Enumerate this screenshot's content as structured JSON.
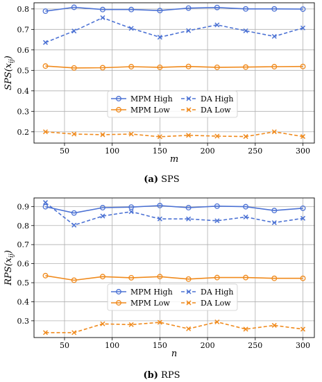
{
  "chart_data": [
    {
      "type": "line",
      "caption_letter": "(a)",
      "caption_text": "SPS",
      "xlabel": "m",
      "ylabel": "SPS(x_ij)",
      "xlim": [
        18,
        312
      ],
      "ylim": [
        0.145,
        0.83
      ],
      "xticks": [
        50,
        100,
        150,
        200,
        250,
        300
      ],
      "yticks": [
        0.2,
        0.3,
        0.4,
        0.5,
        0.6,
        0.7,
        0.8
      ],
      "grid": true,
      "legend_placement": "lower-center",
      "x": [
        30,
        60,
        90,
        120,
        150,
        180,
        210,
        240,
        270,
        300
      ],
      "series": [
        {
          "name": "MPM High",
          "color": "#4c72d4",
          "dash": "solid",
          "marker": "o",
          "values": [
            0.789,
            0.808,
            0.797,
            0.797,
            0.792,
            0.804,
            0.807,
            0.8,
            0.8,
            0.799
          ]
        },
        {
          "name": "DA High",
          "color": "#4c72d4",
          "dash": "dashed",
          "marker": "x",
          "values": [
            0.636,
            0.692,
            0.757,
            0.705,
            0.662,
            0.694,
            0.722,
            0.693,
            0.666,
            0.707
          ]
        },
        {
          "name": "MPM Low",
          "color": "#f08a1c",
          "dash": "solid",
          "marker": "o",
          "values": [
            0.521,
            0.512,
            0.513,
            0.518,
            0.515,
            0.519,
            0.515,
            0.516,
            0.518,
            0.519
          ]
        },
        {
          "name": "DA Low",
          "color": "#f08a1c",
          "dash": "dashed",
          "marker": "x",
          "values": [
            0.2,
            0.189,
            0.186,
            0.189,
            0.176,
            0.183,
            0.179,
            0.177,
            0.2,
            0.177
          ]
        }
      ]
    },
    {
      "type": "line",
      "caption_letter": "(b)",
      "caption_text": "RPS",
      "xlabel": "n",
      "ylabel": "RPS(x_ij)",
      "xlim": [
        18,
        312
      ],
      "ylim": [
        0.212,
        0.945
      ],
      "xticks": [
        50,
        100,
        150,
        200,
        250,
        300
      ],
      "yticks": [
        0.3,
        0.4,
        0.5,
        0.6,
        0.7,
        0.8,
        0.9
      ],
      "grid": true,
      "legend_placement": "lower-center",
      "x": [
        30,
        60,
        90,
        120,
        150,
        180,
        210,
        240,
        270,
        300
      ],
      "series": [
        {
          "name": "MPM High",
          "color": "#4c72d4",
          "dash": "solid",
          "marker": "o",
          "values": [
            0.899,
            0.866,
            0.894,
            0.897,
            0.905,
            0.894,
            0.902,
            0.899,
            0.879,
            0.891
          ]
        },
        {
          "name": "DA High",
          "color": "#4c72d4",
          "dash": "dashed",
          "marker": "x",
          "values": [
            0.921,
            0.802,
            0.85,
            0.873,
            0.835,
            0.835,
            0.825,
            0.845,
            0.815,
            0.838
          ]
        },
        {
          "name": "MPM Low",
          "color": "#f08a1c",
          "dash": "solid",
          "marker": "o",
          "values": [
            0.537,
            0.513,
            0.532,
            0.526,
            0.532,
            0.519,
            0.527,
            0.527,
            0.523,
            0.523
          ]
        },
        {
          "name": "DA Low",
          "color": "#f08a1c",
          "dash": "dashed",
          "marker": "x",
          "values": [
            0.238,
            0.238,
            0.284,
            0.28,
            0.292,
            0.258,
            0.294,
            0.256,
            0.276,
            0.256
          ]
        }
      ]
    }
  ]
}
